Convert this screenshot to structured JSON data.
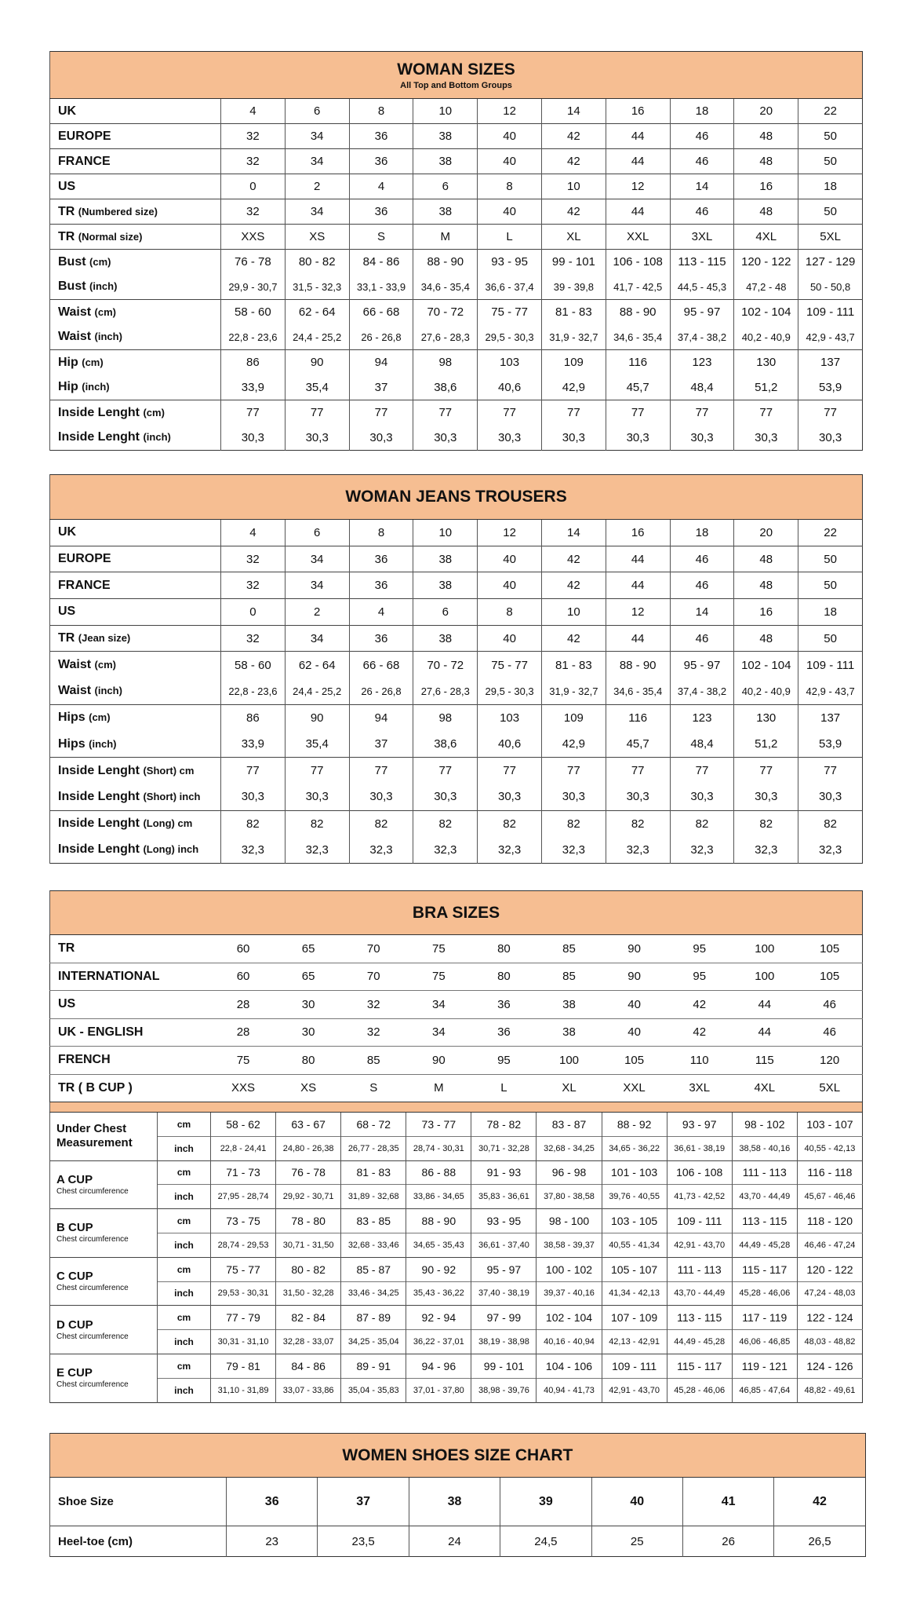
{
  "woman_sizes": {
    "title": "WOMAN SIZES",
    "subtitle": "All Top and Bottom Groups",
    "groups": [
      [
        {
          "label": "UK",
          "values": [
            "4",
            "6",
            "8",
            "10",
            "12",
            "14",
            "16",
            "18",
            "20",
            "22"
          ]
        }
      ],
      [
        {
          "label": "EUROPE",
          "values": [
            "32",
            "34",
            "36",
            "38",
            "40",
            "42",
            "44",
            "46",
            "48",
            "50"
          ]
        }
      ],
      [
        {
          "label": "FRANCE",
          "values": [
            "32",
            "34",
            "36",
            "38",
            "40",
            "42",
            "44",
            "46",
            "48",
            "50"
          ]
        }
      ],
      [
        {
          "label": "US",
          "values": [
            "0",
            "2",
            "4",
            "6",
            "8",
            "10",
            "12",
            "14",
            "16",
            "18"
          ]
        }
      ],
      [
        {
          "label": "TR",
          "note": "(Numbered size)",
          "values": [
            "32",
            "34",
            "36",
            "38",
            "40",
            "42",
            "44",
            "46",
            "48",
            "50"
          ]
        }
      ],
      [
        {
          "label": "TR",
          "note": "(Normal size)",
          "values": [
            "XXS",
            "XS",
            "S",
            "M",
            "L",
            "XL",
            "XXL",
            "3XL",
            "4XL",
            "5XL"
          ]
        }
      ],
      [
        {
          "label": "Bust",
          "note": "(cm)",
          "values": [
            "76 - 78",
            "80 - 82",
            "84 - 86",
            "88 - 90",
            "93 - 95",
            "99 - 101",
            "106 - 108",
            "113 - 115",
            "120 - 122",
            "127 - 129"
          ]
        },
        {
          "label": "Bust",
          "note": "(inch)",
          "inch": true,
          "values": [
            "29,9 - 30,7",
            "31,5 - 32,3",
            "33,1 - 33,9",
            "34,6 - 35,4",
            "36,6 - 37,4",
            "39 - 39,8",
            "41,7 - 42,5",
            "44,5 - 45,3",
            "47,2 - 48",
            "50 - 50,8"
          ]
        }
      ],
      [
        {
          "label": "Waist",
          "note": "(cm)",
          "values": [
            "58 - 60",
            "62 - 64",
            "66 - 68",
            "70 - 72",
            "75 - 77",
            "81 - 83",
            "88 - 90",
            "95 - 97",
            "102 - 104",
            "109 - 111"
          ]
        },
        {
          "label": "Waist",
          "note": "(inch)",
          "inch": true,
          "values": [
            "22,8 - 23,6",
            "24,4 - 25,2",
            "26 - 26,8",
            "27,6 - 28,3",
            "29,5 - 30,3",
            "31,9 - 32,7",
            "34,6 - 35,4",
            "37,4 - 38,2",
            "40,2 - 40,9",
            "42,9 - 43,7"
          ]
        }
      ],
      [
        {
          "label": "Hip",
          "note": "(cm)",
          "values": [
            "86",
            "90",
            "94",
            "98",
            "103",
            "109",
            "116",
            "123",
            "130",
            "137"
          ]
        },
        {
          "label": "Hip",
          "note": "(inch)",
          "values": [
            "33,9",
            "35,4",
            "37",
            "38,6",
            "40,6",
            "42,9",
            "45,7",
            "48,4",
            "51,2",
            "53,9"
          ]
        }
      ],
      [
        {
          "label": "Inside Lenght",
          "note": "(cm)",
          "values": [
            "77",
            "77",
            "77",
            "77",
            "77",
            "77",
            "77",
            "77",
            "77",
            "77"
          ]
        },
        {
          "label": "Inside Lenght",
          "note": "(inch)",
          "values": [
            "30,3",
            "30,3",
            "30,3",
            "30,3",
            "30,3",
            "30,3",
            "30,3",
            "30,3",
            "30,3",
            "30,3"
          ]
        }
      ]
    ]
  },
  "woman_jeans": {
    "title": "WOMAN JEANS TROUSERS",
    "groups": [
      [
        {
          "label": "UK",
          "values": [
            "4",
            "6",
            "8",
            "10",
            "12",
            "14",
            "16",
            "18",
            "20",
            "22"
          ]
        }
      ],
      [
        {
          "label": "EUROPE",
          "values": [
            "32",
            "34",
            "36",
            "38",
            "40",
            "42",
            "44",
            "46",
            "48",
            "50"
          ]
        }
      ],
      [
        {
          "label": "FRANCE",
          "values": [
            "32",
            "34",
            "36",
            "38",
            "40",
            "42",
            "44",
            "46",
            "48",
            "50"
          ]
        }
      ],
      [
        {
          "label": "US",
          "values": [
            "0",
            "2",
            "4",
            "6",
            "8",
            "10",
            "12",
            "14",
            "16",
            "18"
          ]
        }
      ],
      [
        {
          "label": "TR",
          "note": "(Jean size)",
          "values": [
            "32",
            "34",
            "36",
            "38",
            "40",
            "42",
            "44",
            "46",
            "48",
            "50"
          ]
        }
      ],
      [
        {
          "label": "Waist",
          "note": "(cm)",
          "values": [
            "58 - 60",
            "62 - 64",
            "66 - 68",
            "70 - 72",
            "75 - 77",
            "81 - 83",
            "88 - 90",
            "95 - 97",
            "102 - 104",
            "109 - 111"
          ]
        },
        {
          "label": "Waist",
          "note": "(inch)",
          "inch": true,
          "values": [
            "22,8 - 23,6",
            "24,4 - 25,2",
            "26 - 26,8",
            "27,6 - 28,3",
            "29,5 - 30,3",
            "31,9 - 32,7",
            "34,6 - 35,4",
            "37,4 - 38,2",
            "40,2 - 40,9",
            "42,9 - 43,7"
          ]
        }
      ],
      [
        {
          "label": "Hips",
          "note": "(cm)",
          "values": [
            "86",
            "90",
            "94",
            "98",
            "103",
            "109",
            "116",
            "123",
            "130",
            "137"
          ]
        },
        {
          "label": "Hips",
          "note": "(inch)",
          "values": [
            "33,9",
            "35,4",
            "37",
            "38,6",
            "40,6",
            "42,9",
            "45,7",
            "48,4",
            "51,2",
            "53,9"
          ]
        }
      ],
      [
        {
          "label": "Inside Lenght",
          "note": "(Short) cm",
          "values": [
            "77",
            "77",
            "77",
            "77",
            "77",
            "77",
            "77",
            "77",
            "77",
            "77"
          ]
        },
        {
          "label": "Inside Lenght",
          "note": "(Short) inch",
          "values": [
            "30,3",
            "30,3",
            "30,3",
            "30,3",
            "30,3",
            "30,3",
            "30,3",
            "30,3",
            "30,3",
            "30,3"
          ]
        }
      ],
      [
        {
          "label": "Inside Lenght",
          "note": "(Long) cm",
          "values": [
            "82",
            "82",
            "82",
            "82",
            "82",
            "82",
            "82",
            "82",
            "82",
            "82"
          ]
        },
        {
          "label": "Inside Lenght",
          "note": "(Long) inch",
          "values": [
            "32,3",
            "32,3",
            "32,3",
            "32,3",
            "32,3",
            "32,3",
            "32,3",
            "32,3",
            "32,3",
            "32,3"
          ]
        }
      ]
    ]
  },
  "bra_sizes": {
    "title": "BRA SIZES",
    "rows": [
      {
        "label": "TR",
        "values": [
          "60",
          "65",
          "70",
          "75",
          "80",
          "85",
          "90",
          "95",
          "100",
          "105"
        ]
      },
      {
        "label": "INTERNATIONAL",
        "values": [
          "60",
          "65",
          "70",
          "75",
          "80",
          "85",
          "90",
          "95",
          "100",
          "105"
        ]
      },
      {
        "label": "US",
        "values": [
          "28",
          "30",
          "32",
          "34",
          "36",
          "38",
          "40",
          "42",
          "44",
          "46"
        ]
      },
      {
        "label": "UK - ENGLISH",
        "values": [
          "28",
          "30",
          "32",
          "34",
          "36",
          "38",
          "40",
          "42",
          "44",
          "46"
        ]
      },
      {
        "label": "FRENCH",
        "values": [
          "75",
          "80",
          "85",
          "90",
          "95",
          "100",
          "105",
          "110",
          "115",
          "120"
        ]
      },
      {
        "label": "TR ( B CUP )",
        "values": [
          "XXS",
          "XS",
          "S",
          "M",
          "L",
          "XL",
          "XXL",
          "3XL",
          "4XL",
          "5XL"
        ]
      }
    ],
    "cups": [
      {
        "label": "Under Chest Measurement",
        "caption": "",
        "cm": [
          "58 - 62",
          "63 - 67",
          "68 - 72",
          "73 - 77",
          "78 - 82",
          "83 - 87",
          "88 - 92",
          "93 - 97",
          "98 - 102",
          "103 - 107"
        ],
        "inch": [
          "22,8 - 24,41",
          "24,80 - 26,38",
          "26,77 - 28,35",
          "28,74 - 30,31",
          "30,71 - 32,28",
          "32,68 - 34,25",
          "34,65 - 36,22",
          "36,61 - 38,19",
          "38,58 - 40,16",
          "40,55 - 42,13"
        ]
      },
      {
        "label": "A CUP",
        "caption": "Chest circumference",
        "cm": [
          "71 - 73",
          "76 - 78",
          "81 - 83",
          "86 - 88",
          "91 - 93",
          "96 - 98",
          "101 - 103",
          "106 - 108",
          "111 - 113",
          "116 - 118"
        ],
        "inch": [
          "27,95 - 28,74",
          "29,92 - 30,71",
          "31,89 - 32,68",
          "33,86 - 34,65",
          "35,83 - 36,61",
          "37,80 - 38,58",
          "39,76 - 40,55",
          "41,73 - 42,52",
          "43,70 - 44,49",
          "45,67 - 46,46"
        ]
      },
      {
        "label": "B CUP",
        "caption": "Chest circumference",
        "cm": [
          "73 - 75",
          "78 - 80",
          "83 - 85",
          "88 - 90",
          "93 - 95",
          "98 - 100",
          "103 - 105",
          "109 - 111",
          "113 - 115",
          "118 - 120"
        ],
        "inch": [
          "28,74 - 29,53",
          "30,71 - 31,50",
          "32,68 - 33,46",
          "34,65 - 35,43",
          "36,61 - 37,40",
          "38,58 - 39,37",
          "40,55 - 41,34",
          "42,91 - 43,70",
          "44,49 - 45,28",
          "46,46 - 47,24"
        ]
      },
      {
        "label": "C CUP",
        "caption": "Chest circumference",
        "cm": [
          "75 - 77",
          "80 - 82",
          "85 - 87",
          "90 - 92",
          "95 - 97",
          "100 - 102",
          "105 - 107",
          "111 - 113",
          "115 - 117",
          "120 - 122"
        ],
        "inch": [
          "29,53 - 30,31",
          "31,50 - 32,28",
          "33,46 - 34,25",
          "35,43 - 36,22",
          "37,40 - 38,19",
          "39,37 - 40,16",
          "41,34 - 42,13",
          "43,70 - 44,49",
          "45,28 - 46,06",
          "47,24 - 48,03"
        ]
      },
      {
        "label": "D CUP",
        "caption": "Chest circumference",
        "cm": [
          "77 - 79",
          "82 - 84",
          "87 - 89",
          "92 - 94",
          "97 - 99",
          "102 - 104",
          "107 - 109",
          "113 - 115",
          "117 - 119",
          "122 - 124"
        ],
        "inch": [
          "30,31 - 31,10",
          "32,28 - 33,07",
          "34,25 - 35,04",
          "36,22 - 37,01",
          "38,19 - 38,98",
          "40,16 - 40,94",
          "42,13 - 42,91",
          "44,49 - 45,28",
          "46,06 - 46,85",
          "48,03 - 48,82"
        ]
      },
      {
        "label": "E CUP",
        "caption": "Chest circumference",
        "cm": [
          "79 - 81",
          "84 - 86",
          "89 - 91",
          "94 - 96",
          "99 - 101",
          "104 - 106",
          "109 - 111",
          "115 - 117",
          "119 - 121",
          "124 - 126"
        ],
        "inch": [
          "31,10 - 31,89",
          "33,07 - 33,86",
          "35,04 - 35,83",
          "37,01 - 37,80",
          "38,98 - 39,76",
          "40,94 - 41,73",
          "42,91 - 43,70",
          "45,28 - 46,06",
          "46,85 - 47,64",
          "48,82 - 49,61"
        ]
      }
    ],
    "unit_cm": "cm",
    "unit_inch": "inch"
  },
  "shoes": {
    "title": "WOMEN SHOES SIZE CHART",
    "rows": [
      {
        "label": "Shoe Size",
        "bold": true,
        "values": [
          "36",
          "37",
          "38",
          "39",
          "40",
          "41",
          "42"
        ]
      },
      {
        "label": "Heel-toe (cm)",
        "values": [
          "23",
          "23,5",
          "24",
          "24,5",
          "25",
          "26",
          "26,5"
        ]
      }
    ]
  },
  "colors": {
    "header_bg": "#F6BE92"
  }
}
